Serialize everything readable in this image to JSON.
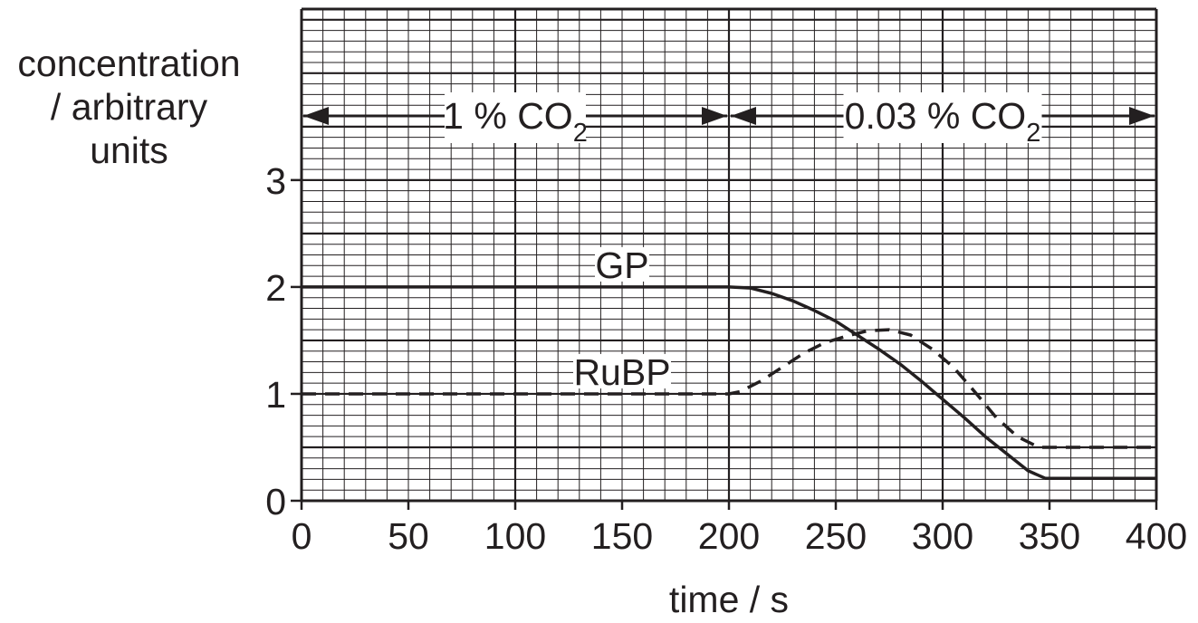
{
  "chart_data": {
    "type": "line",
    "xlabel": "time / s",
    "ylabel": [
      "concentration",
      "/ arbitrary",
      "units"
    ],
    "xlim": [
      0,
      400
    ],
    "ylim": [
      0,
      4.6
    ],
    "xticks": [
      "0",
      "50",
      "100",
      "150",
      "200",
      "250",
      "300",
      "350",
      "400"
    ],
    "yticks": [
      "0",
      "1",
      "2",
      "3"
    ],
    "grid": true,
    "regions": [
      {
        "from": 0,
        "to": 200,
        "label_main": "1 % CO",
        "label_sub": "2"
      },
      {
        "from": 200,
        "to": 400,
        "label_main": "0.03 % CO",
        "label_sub": "2"
      }
    ],
    "series": [
      {
        "name": "GP",
        "style": "solid",
        "points": [
          [
            0,
            2.0
          ],
          [
            200,
            2.0
          ],
          [
            210,
            1.99
          ],
          [
            220,
            1.94
          ],
          [
            230,
            1.87
          ],
          [
            240,
            1.78
          ],
          [
            250,
            1.68
          ],
          [
            260,
            1.55
          ],
          [
            270,
            1.42
          ],
          [
            280,
            1.28
          ],
          [
            290,
            1.12
          ],
          [
            300,
            0.95
          ],
          [
            310,
            0.78
          ],
          [
            320,
            0.6
          ],
          [
            330,
            0.44
          ],
          [
            340,
            0.28
          ],
          [
            348,
            0.21
          ],
          [
            400,
            0.21
          ]
        ]
      },
      {
        "name": "RuBP",
        "style": "dashed",
        "points": [
          [
            0,
            1.0
          ],
          [
            200,
            1.0
          ],
          [
            205,
            1.02
          ],
          [
            215,
            1.12
          ],
          [
            225,
            1.25
          ],
          [
            235,
            1.38
          ],
          [
            245,
            1.48
          ],
          [
            255,
            1.54
          ],
          [
            265,
            1.59
          ],
          [
            275,
            1.6
          ],
          [
            285,
            1.55
          ],
          [
            295,
            1.42
          ],
          [
            305,
            1.25
          ],
          [
            315,
            1.02
          ],
          [
            325,
            0.78
          ],
          [
            335,
            0.6
          ],
          [
            345,
            0.5
          ],
          [
            350,
            0.5
          ],
          [
            400,
            0.5
          ]
        ]
      }
    ]
  }
}
